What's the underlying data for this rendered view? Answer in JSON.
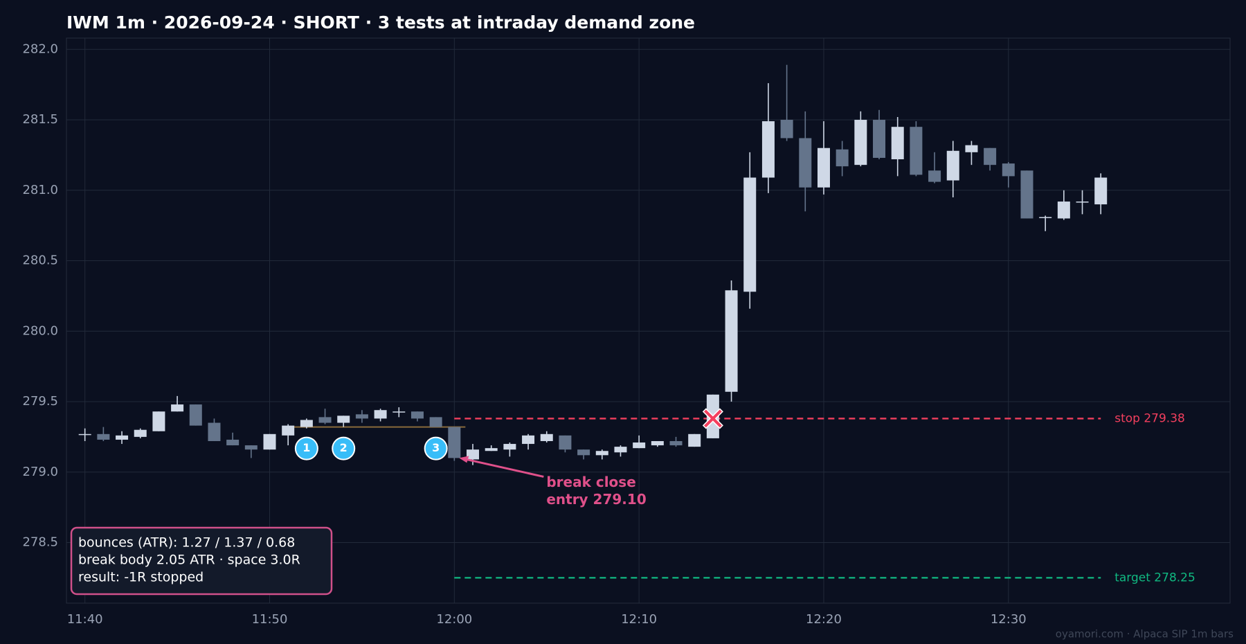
{
  "chart_data": {
    "type": "candlestick",
    "title": "IWM 1m · 2026-09-24 · SHORT · 3 tests at intraday demand zone",
    "x": [
      "11:40",
      "11:41",
      "11:42",
      "11:43",
      "11:44",
      "11:45",
      "11:46",
      "11:47",
      "11:48",
      "11:49",
      "11:50",
      "11:51",
      "11:52",
      "11:53",
      "11:54",
      "11:55",
      "11:56",
      "11:57",
      "11:58",
      "11:59",
      "12:00",
      "12:01",
      "12:02",
      "12:03",
      "12:04",
      "12:05",
      "12:06",
      "12:07",
      "12:08",
      "12:09",
      "12:10",
      "12:11",
      "12:12",
      "12:13",
      "12:14",
      "12:15",
      "12:16",
      "12:17",
      "12:18",
      "12:19",
      "12:20",
      "12:21",
      "12:22",
      "12:23",
      "12:24",
      "12:25",
      "12:26",
      "12:27",
      "12:28",
      "12:29",
      "12:30",
      "12:31",
      "12:32",
      "12:33",
      "12:34",
      "12:35"
    ],
    "open": [
      279.27,
      279.27,
      279.23,
      279.25,
      279.29,
      279.43,
      279.48,
      279.35,
      279.23,
      279.19,
      279.16,
      279.26,
      279.32,
      279.39,
      279.35,
      279.41,
      279.38,
      279.43,
      279.43,
      279.39,
      279.32,
      279.09,
      279.15,
      279.16,
      279.2,
      279.22,
      279.26,
      279.16,
      279.12,
      279.14,
      279.17,
      279.19,
      279.22,
      279.18,
      279.24,
      279.57,
      280.28,
      281.09,
      281.5,
      281.37,
      281.02,
      281.29,
      281.18,
      281.5,
      281.22,
      281.45,
      281.14,
      281.07,
      281.27,
      281.3,
      281.19,
      281.14,
      280.81,
      280.8,
      280.92,
      280.9
    ],
    "high": [
      279.31,
      279.32,
      279.29,
      279.31,
      279.43,
      279.54,
      279.48,
      279.38,
      279.28,
      279.19,
      279.27,
      279.34,
      279.38,
      279.45,
      279.4,
      279.44,
      279.45,
      279.46,
      279.43,
      279.39,
      279.32,
      279.2,
      279.19,
      279.21,
      279.27,
      279.29,
      279.26,
      279.16,
      279.16,
      279.19,
      279.26,
      279.22,
      279.25,
      279.27,
      279.55,
      280.36,
      281.27,
      281.76,
      281.89,
      281.56,
      281.49,
      281.35,
      281.56,
      281.57,
      281.52,
      281.49,
      281.27,
      281.35,
      281.35,
      281.3,
      281.2,
      281.14,
      280.82,
      281.0,
      281.0,
      281.12
    ],
    "low": [
      279.22,
      279.22,
      279.2,
      279.24,
      279.29,
      279.43,
      279.33,
      279.22,
      279.19,
      279.1,
      279.16,
      279.19,
      279.31,
      279.34,
      279.32,
      279.35,
      279.36,
      279.39,
      279.36,
      279.32,
      279.08,
      279.05,
      279.15,
      279.11,
      279.16,
      279.21,
      279.14,
      279.09,
      279.09,
      279.11,
      279.17,
      279.18,
      279.18,
      279.18,
      279.24,
      279.5,
      280.16,
      280.98,
      281.35,
      280.85,
      280.97,
      281.1,
      281.17,
      281.22,
      281.1,
      281.1,
      281.05,
      280.95,
      281.18,
      281.14,
      281.02,
      280.8,
      280.71,
      280.79,
      280.83,
      280.83
    ],
    "close": [
      279.27,
      279.23,
      279.26,
      279.3,
      279.43,
      279.48,
      279.33,
      279.22,
      279.19,
      279.16,
      279.27,
      279.33,
      279.37,
      279.35,
      279.4,
      279.38,
      279.44,
      279.43,
      279.38,
      279.32,
      279.1,
      279.16,
      279.17,
      279.2,
      279.26,
      279.27,
      279.16,
      279.12,
      279.15,
      279.18,
      279.21,
      279.22,
      279.19,
      279.27,
      279.55,
      280.29,
      281.09,
      281.49,
      281.37,
      281.02,
      281.3,
      281.17,
      281.5,
      281.23,
      281.45,
      281.11,
      281.06,
      281.28,
      281.32,
      281.18,
      281.1,
      280.8,
      280.81,
      280.92,
      280.92,
      281.09
    ],
    "up_color": "#cfd8e6",
    "down_color": "#64748b",
    "xlim": [
      "11:39",
      "12:42"
    ],
    "xticks": [
      "11:40",
      "11:50",
      "12:00",
      "12:10",
      "12:20",
      "12:30"
    ],
    "ylim": [
      278.07,
      282.08
    ],
    "yticks": [
      278.5,
      {
        "value": 279,
        "label": "279.0"
      },
      279.5,
      {
        "value": 280,
        "label": "280.0"
      },
      280.5,
      {
        "value": 281,
        "label": "281.0"
      },
      281.5,
      {
        "value": 282,
        "label": "282.0"
      }
    ],
    "grid": true,
    "zone": {
      "price": 279.32,
      "start": "11:51",
      "end": "12:00",
      "color": "#8a6a3a"
    },
    "tests": [
      {
        "label": "1",
        "time": "11:52"
      },
      {
        "label": "2",
        "time": "11:54"
      },
      {
        "label": "3",
        "time": "11:59"
      }
    ],
    "levels_start": "12:00",
    "levels_end": "12:35",
    "levels": [
      {
        "value": 279.38,
        "label": "stop 279.38",
        "color": "#f43f5e"
      },
      {
        "value": 278.25,
        "label": "target 278.25",
        "color": "#10b981"
      }
    ],
    "entry": {
      "time": "12:00",
      "price": 279.1,
      "label": [
        "break close",
        "entry 279.10"
      ],
      "color": "#e0508a"
    },
    "exit": {
      "time": "12:14",
      "price": 279.38,
      "color": "#f43f5e"
    },
    "info": [
      "bounces (ATR): 1.27 / 1.37 / 0.68",
      "break body 2.05 ATR · space 3.0R",
      "result: -1R stopped"
    ],
    "footer": "oyamori.com · Alpaca SIP 1m bars"
  }
}
